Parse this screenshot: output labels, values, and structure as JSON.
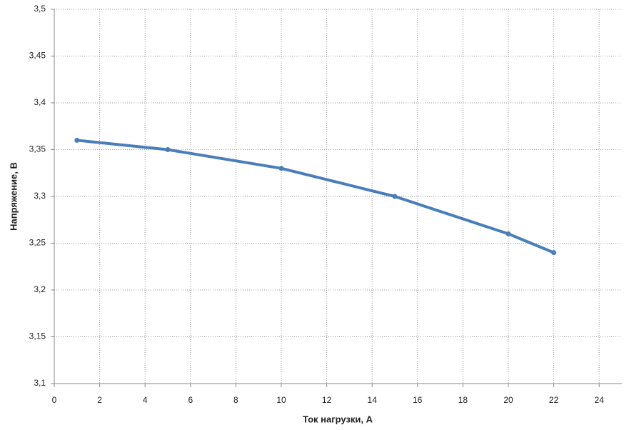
{
  "chart_data": {
    "type": "line",
    "x_label": "Ток нагрузки, А",
    "y_label": "Напряжение, В",
    "x": [
      1,
      5,
      10,
      15,
      20,
      22
    ],
    "series": [
      {
        "name": "Напряжение",
        "color": "#4a7ebb",
        "values": [
          3.36,
          3.35,
          3.33,
          3.3,
          3.26,
          3.24
        ]
      }
    ],
    "xlim": [
      0,
      25
    ],
    "xticks": [
      0,
      2,
      4,
      6,
      8,
      10,
      12,
      14,
      16,
      18,
      20,
      22,
      24
    ],
    "ylim": [
      3.1,
      3.5
    ],
    "yticks": [
      {
        "value": 3.1,
        "label": "3,1"
      },
      {
        "value": 3.15,
        "label": "3,15"
      },
      {
        "value": 3.2,
        "label": "3,2"
      },
      {
        "value": 3.25,
        "label": "3,25"
      },
      {
        "value": 3.3,
        "label": "3,3"
      },
      {
        "value": 3.35,
        "label": "3,35"
      },
      {
        "value": 3.4,
        "label": "3,4"
      },
      {
        "value": 3.45,
        "label": "3,45"
      },
      {
        "value": 3.5,
        "label": "3,5"
      }
    ],
    "grid": true
  }
}
